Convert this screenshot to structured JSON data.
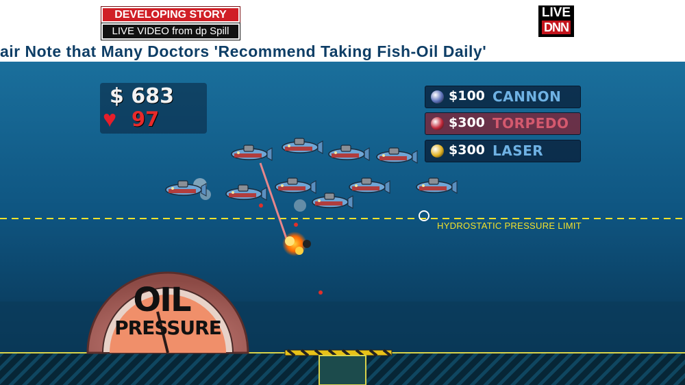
{
  "news": {
    "developing": "DEVELOPING STORY",
    "live_video": "LIVE VIDEO from dp Spill",
    "ticker": "air Note that Many Doctors 'Recommend Taking Fish-Oil Daily'",
    "live_label": "LIVE",
    "network": "DNN"
  },
  "hud": {
    "money": "$ 683",
    "health": "97"
  },
  "weapons": [
    {
      "price": "$100",
      "name": "CANNON",
      "selected": false,
      "orb_color": "#5a6fb8"
    },
    {
      "price": "$300",
      "name": "TORPEDO",
      "selected": true,
      "orb_color": "#c2283a"
    },
    {
      "price": "$300",
      "name": "LASER",
      "selected": false,
      "orb_color": "#e0b020"
    }
  ],
  "pressure_limit_label": "HYDROSTATIC PRESSURE LIMIT",
  "gauge": {
    "line1": "OIL",
    "line2": "PRESSURE"
  },
  "colors": {
    "water": "#0d4a6e",
    "limit_line": "#f3e22b",
    "laser": "#ff7b7b",
    "breaking_red": "#d01f26"
  }
}
